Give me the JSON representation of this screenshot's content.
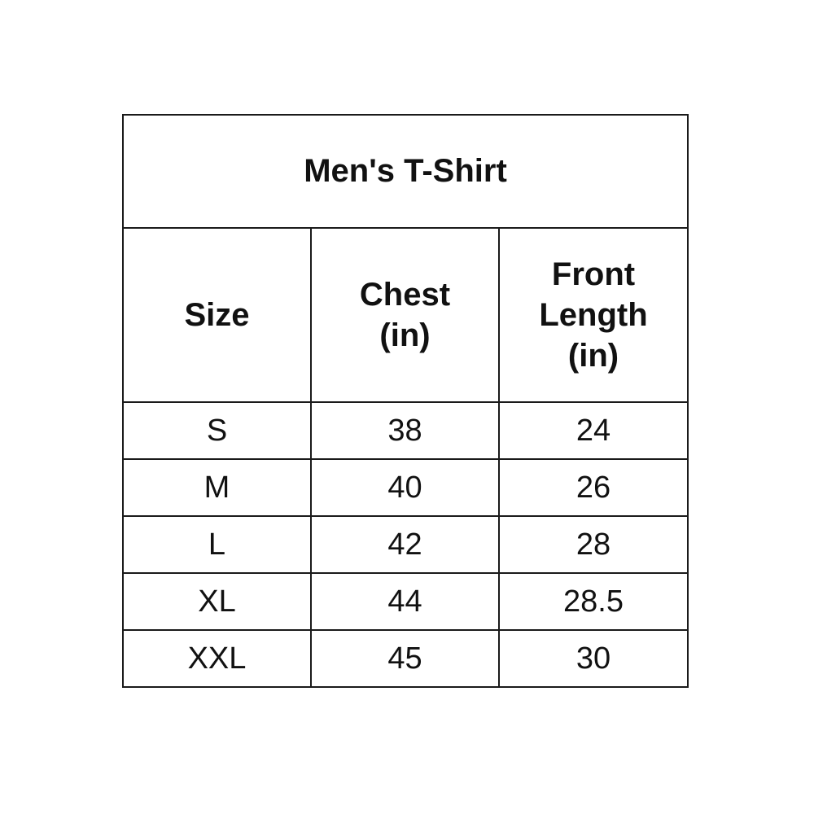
{
  "title": "Men's T-Shirt",
  "headers": {
    "size": "Size",
    "chest_line1": "Chest",
    "chest_line2": "(in)",
    "length_line1": "Front",
    "length_line2": "Length",
    "length_line3": "(in)"
  },
  "rows": [
    {
      "size": "S",
      "chest": "38",
      "length": "24"
    },
    {
      "size": "M",
      "chest": "40",
      "length": "26"
    },
    {
      "size": "L",
      "chest": "42",
      "length": "28"
    },
    {
      "size": "XL",
      "chest": "44",
      "length": "28.5"
    },
    {
      "size": "XXL",
      "chest": "45",
      "length": "30"
    }
  ]
}
